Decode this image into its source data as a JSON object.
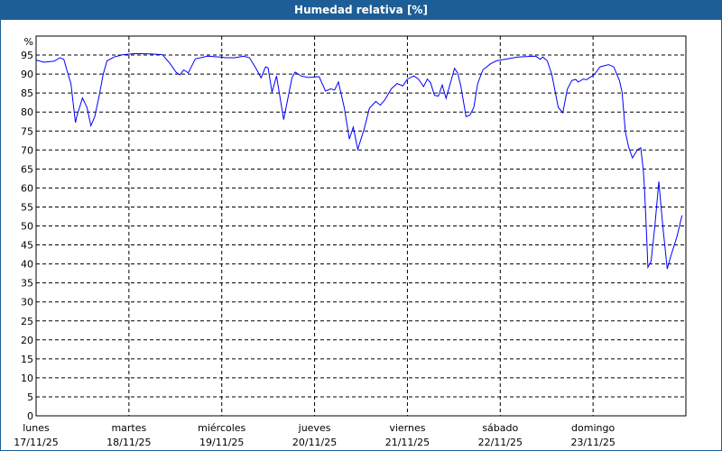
{
  "window": {
    "title": "Humedad relativa [%]"
  },
  "chart_data": {
    "type": "line",
    "title": "Humedad relativa [%]",
    "ylabel": "%",
    "ylim": [
      0,
      100
    ],
    "yticks": [
      0,
      5,
      10,
      15,
      20,
      25,
      30,
      35,
      40,
      45,
      50,
      55,
      60,
      65,
      70,
      75,
      80,
      85,
      90,
      95
    ],
    "xlim": [
      "17/11/25 00:00",
      "24/11/25 00:00"
    ],
    "xticks": [
      {
        "day": "lunes",
        "date": "17/11/25"
      },
      {
        "day": "martes",
        "date": "18/11/25"
      },
      {
        "day": "miércoles",
        "date": "19/11/25"
      },
      {
        "day": "jueves",
        "date": "20/11/25"
      },
      {
        "day": "viernes",
        "date": "21/11/25"
      },
      {
        "day": "sábado",
        "date": "22/11/25"
      },
      {
        "day": "domingo",
        "date": "23/11/25"
      }
    ],
    "grid": true,
    "line_color": "#0000ff",
    "series": [
      {
        "points": [
          [
            "17/11/25 00:00",
            93.7
          ],
          [
            "17/11/25 02:00",
            93.1
          ],
          [
            "17/11/25 04:40",
            93.4
          ],
          [
            "17/11/25 06:10",
            94.3
          ],
          [
            "17/11/25 07:10",
            93.9
          ],
          [
            "17/11/25 08:10",
            90.3
          ],
          [
            "17/11/25 09:00",
            87.5
          ],
          [
            "17/11/25 09:30",
            83.1
          ],
          [
            "17/11/25 10:10",
            77.2
          ],
          [
            "17/11/25 10:30",
            78.8
          ],
          [
            "17/11/25 12:00",
            83.7
          ],
          [
            "17/11/25 13:10",
            81.2
          ],
          [
            "17/11/25 14:10",
            76.4
          ],
          [
            "17/11/25 15:10",
            78.8
          ],
          [
            "17/11/25 16:20",
            84.4
          ],
          [
            "17/11/25 17:20",
            89.9
          ],
          [
            "17/11/25 18:20",
            93.5
          ],
          [
            "17/11/25 20:10",
            94.5
          ],
          [
            "17/11/25 22:30",
            95.1
          ],
          [
            "18/11/25 01:40",
            95.4
          ],
          [
            "18/11/25 05:30",
            95.3
          ],
          [
            "18/11/25 08:40",
            95.1
          ],
          [
            "18/11/25 10:40",
            92.7
          ],
          [
            "18/11/25 12:10",
            90.5
          ],
          [
            "18/11/25 13:10",
            89.8
          ],
          [
            "18/11/25 14:10",
            91.1
          ],
          [
            "18/11/25 15:20",
            90.3
          ],
          [
            "18/11/25 17:10",
            94.0
          ],
          [
            "18/11/25 20:20",
            94.7
          ],
          [
            "18/11/25 23:30",
            94.5
          ],
          [
            "19/11/25 01:00",
            94.3
          ],
          [
            "19/11/25 03:20",
            94.3
          ],
          [
            "19/11/25 05:40",
            94.7
          ],
          [
            "19/11/25 07:10",
            94.3
          ],
          [
            "19/11/25 08:50",
            91.5
          ],
          [
            "19/11/25 10:10",
            89.0
          ],
          [
            "19/11/25 11:20",
            91.9
          ],
          [
            "19/11/25 12:00",
            91.6
          ],
          [
            "19/11/25 13:00",
            85.2
          ],
          [
            "19/11/25 14:10",
            89.5
          ],
          [
            "19/11/25 16:00",
            78.0
          ],
          [
            "19/11/25 18:10",
            89.1
          ],
          [
            "19/11/25 19:00",
            90.5
          ],
          [
            "19/11/25 20:30",
            89.5
          ],
          [
            "19/11/25 22:20",
            89.1
          ],
          [
            "20/11/25 01:10",
            89.3
          ],
          [
            "20/11/25 02:50",
            85.5
          ],
          [
            "20/11/25 04:10",
            86.1
          ],
          [
            "20/11/25 05:10",
            85.8
          ],
          [
            "20/11/25 06:10",
            87.9
          ],
          [
            "20/11/25 07:40",
            81.2
          ],
          [
            "20/11/25 09:00",
            72.9
          ],
          [
            "20/11/25 10:00",
            76.0
          ],
          [
            "20/11/25 11:10",
            70.2
          ],
          [
            "20/11/25 12:50",
            75.6
          ],
          [
            "20/11/25 14:10",
            81.0
          ],
          [
            "20/11/25 15:50",
            82.8
          ],
          [
            "20/11/25 17:00",
            81.8
          ],
          [
            "20/11/25 18:10",
            83.2
          ],
          [
            "20/11/25 19:50",
            86.1
          ],
          [
            "20/11/25 21:20",
            87.5
          ],
          [
            "20/11/25 22:50",
            86.9
          ],
          [
            "21/11/25 00:00",
            88.7
          ],
          [
            "21/11/25 01:40",
            89.5
          ],
          [
            "21/11/25 02:50",
            88.7
          ],
          [
            "21/11/25 04:10",
            86.7
          ],
          [
            "21/11/25 05:10",
            88.7
          ],
          [
            "21/11/25 06:00",
            87.7
          ],
          [
            "21/11/25 07:00",
            84.4
          ],
          [
            "21/11/25 08:00",
            84.2
          ],
          [
            "21/11/25 09:00",
            87.1
          ],
          [
            "21/11/25 10:00",
            83.6
          ],
          [
            "21/11/25 12:10",
            91.5
          ],
          [
            "21/11/25 13:00",
            90.3
          ],
          [
            "21/11/25 13:50",
            86.7
          ],
          [
            "21/11/25 15:10",
            78.8
          ],
          [
            "21/11/25 16:10",
            79.2
          ],
          [
            "21/11/25 17:10",
            81.2
          ],
          [
            "21/11/25 18:10",
            87.5
          ],
          [
            "21/11/25 19:30",
            91.1
          ],
          [
            "21/11/25 21:30",
            92.7
          ],
          [
            "21/11/25 23:00",
            93.5
          ],
          [
            "22/11/25 04:30",
            94.5
          ],
          [
            "22/11/25 09:10",
            94.7
          ],
          [
            "22/11/25 10:20",
            93.9
          ],
          [
            "22/11/25 11:00",
            94.5
          ],
          [
            "22/11/25 12:10",
            93.5
          ],
          [
            "22/11/25 13:20",
            89.9
          ],
          [
            "22/11/25 15:00",
            81.2
          ],
          [
            "22/11/25 16:10",
            79.8
          ],
          [
            "22/11/25 17:20",
            86.0
          ],
          [
            "22/11/25 18:30",
            88.3
          ],
          [
            "22/11/25 19:30",
            88.6
          ],
          [
            "22/11/25 20:10",
            87.9
          ],
          [
            "22/11/25 21:30",
            88.7
          ],
          [
            "22/11/25 22:20",
            88.5
          ],
          [
            "23/11/25 00:20",
            89.9
          ],
          [
            "23/11/25 01:50",
            91.9
          ],
          [
            "23/11/25 04:00",
            92.5
          ],
          [
            "23/11/25 05:20",
            91.9
          ],
          [
            "23/11/25 06:50",
            88.3
          ],
          [
            "23/11/25 07:30",
            85.2
          ],
          [
            "23/11/25 08:20",
            74.8
          ],
          [
            "23/11/25 09:10",
            70.9
          ],
          [
            "23/11/25 10:10",
            67.9
          ],
          [
            "23/11/25 11:30",
            70.1
          ],
          [
            "23/11/25 12:20",
            70.6
          ],
          [
            "23/11/25 13:00",
            64.5
          ],
          [
            "23/11/25 13:20",
            59.0
          ],
          [
            "23/11/25 13:50",
            47.9
          ],
          [
            "23/11/25 14:10",
            39.1
          ],
          [
            "23/11/25 15:00",
            40.7
          ],
          [
            "23/11/25 16:00",
            50.2
          ],
          [
            "23/11/25 17:00",
            61.7
          ],
          [
            "23/11/25 18:00",
            50.2
          ],
          [
            "23/11/25 19:10",
            38.7
          ],
          [
            "23/11/25 20:10",
            42.3
          ],
          [
            "23/11/25 21:40",
            47.1
          ],
          [
            "23/11/25 23:00",
            52.8
          ]
        ]
      }
    ]
  }
}
